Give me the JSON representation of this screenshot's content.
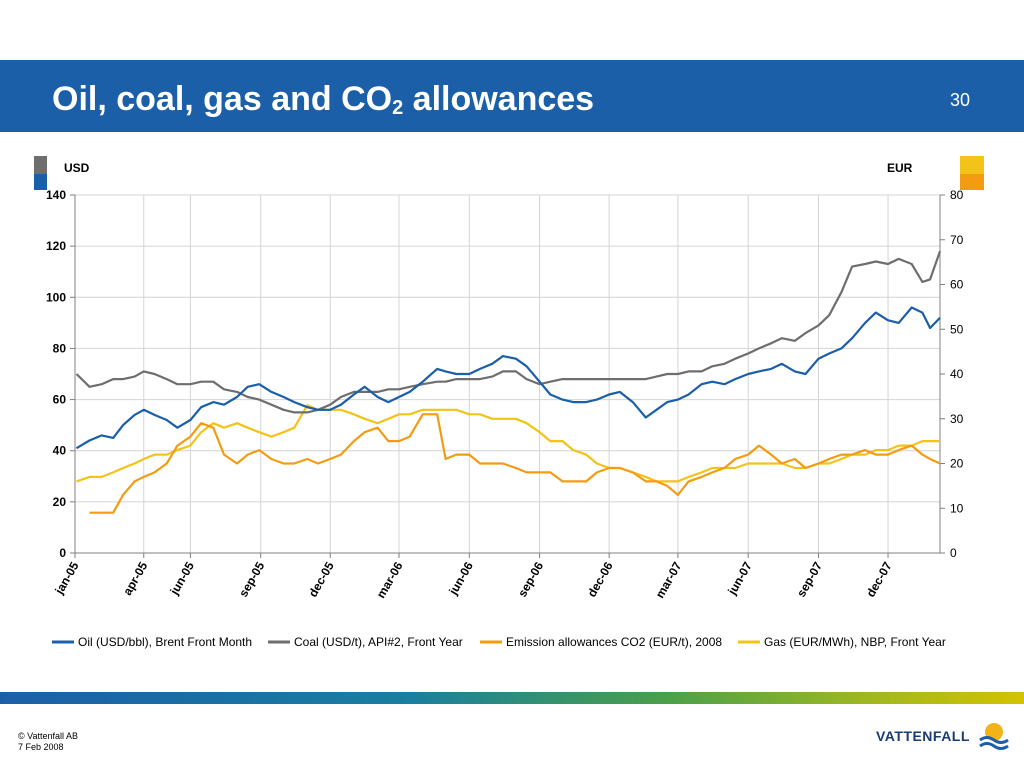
{
  "slide": {
    "title_main": "Oil, coal, gas and CO",
    "title_sub": "2",
    "title_rest": " allowances",
    "page_number": "30",
    "copyright": "© Vattenfall AB",
    "date": "7 Feb 2008",
    "logo_text": "VATTENFALL",
    "colors": {
      "header": "#1b5fa8",
      "oil": "#1b5fa8",
      "coal": "#6e6e6e",
      "co2": "#f39c12",
      "gas": "#f2c318"
    }
  },
  "chart_data": {
    "type": "line",
    "left_axis_label": "USD",
    "right_axis_label": "EUR",
    "left_ylim": [
      0,
      140
    ],
    "left_ticks": [
      "0",
      "20",
      "40",
      "60",
      "80",
      "100",
      "120",
      "140"
    ],
    "right_ylim": [
      0,
      80
    ],
    "right_ticks": [
      "0",
      "10",
      "20",
      "30",
      "40",
      "50",
      "60",
      "70",
      "80"
    ],
    "x_range": [
      "2005-01-01",
      "2008-02-07"
    ],
    "x_ticks": [
      "jan-05",
      "apr-05",
      "jun-05",
      "sep-05",
      "dec-05",
      "mar-06",
      "jun-06",
      "sep-06",
      "dec-06",
      "mar-07",
      "jun-07",
      "sep-07",
      "dec-07"
    ],
    "grid": true,
    "legend_position": "bottom",
    "series": [
      {
        "name": "Oil (USD/bbl), Brent Front Month",
        "axis": "left",
        "color": "#1b5fa8",
        "x": [
          "2005-01-03",
          "2005-01-20",
          "2005-02-05",
          "2005-02-20",
          "2005-03-05",
          "2005-03-20",
          "2005-04-01",
          "2005-04-15",
          "2005-05-01",
          "2005-05-15",
          "2005-06-01",
          "2005-06-15",
          "2005-07-01",
          "2005-07-15",
          "2005-08-01",
          "2005-08-15",
          "2005-08-30",
          "2005-09-15",
          "2005-10-01",
          "2005-10-15",
          "2005-11-01",
          "2005-11-15",
          "2005-12-01",
          "2005-12-15",
          "2006-01-01",
          "2006-01-15",
          "2006-02-01",
          "2006-02-15",
          "2006-03-01",
          "2006-03-15",
          "2006-04-01",
          "2006-04-20",
          "2006-05-01",
          "2006-05-15",
          "2006-06-01",
          "2006-06-15",
          "2006-07-01",
          "2006-07-15",
          "2006-08-01",
          "2006-08-15",
          "2006-09-01",
          "2006-09-15",
          "2006-10-01",
          "2006-10-15",
          "2006-11-01",
          "2006-11-15",
          "2006-12-01",
          "2006-12-15",
          "2007-01-01",
          "2007-01-18",
          "2007-02-01",
          "2007-02-15",
          "2007-03-01",
          "2007-03-15",
          "2007-04-01",
          "2007-04-15",
          "2007-05-01",
          "2007-05-15",
          "2007-06-01",
          "2007-06-15",
          "2007-07-01",
          "2007-07-15",
          "2007-08-01",
          "2007-08-15",
          "2007-09-01",
          "2007-09-15",
          "2007-10-01",
          "2007-10-15",
          "2007-11-01",
          "2007-11-15",
          "2007-12-01",
          "2007-12-15",
          "2008-01-01",
          "2008-01-15",
          "2008-01-25",
          "2008-02-07"
        ],
        "values": [
          41,
          44,
          46,
          45,
          50,
          54,
          56,
          54,
          52,
          49,
          52,
          57,
          59,
          58,
          61,
          65,
          66,
          63,
          61,
          59,
          57,
          56,
          56,
          58,
          62,
          65,
          61,
          59,
          61,
          63,
          67,
          72,
          71,
          70,
          70,
          72,
          74,
          77,
          76,
          73,
          67,
          62,
          60,
          59,
          59,
          60,
          62,
          63,
          59,
          53,
          56,
          59,
          60,
          62,
          66,
          67,
          66,
          68,
          70,
          71,
          72,
          74,
          71,
          70,
          76,
          78,
          80,
          84,
          90,
          94,
          91,
          90,
          96,
          94,
          88,
          92
        ]
      },
      {
        "name": "Coal (USD/t), API#2, Front Year",
        "axis": "left",
        "color": "#6e6e6e",
        "x": [
          "2005-01-03",
          "2005-01-20",
          "2005-02-05",
          "2005-02-20",
          "2005-03-05",
          "2005-03-20",
          "2005-04-01",
          "2005-04-15",
          "2005-05-01",
          "2005-05-15",
          "2005-06-01",
          "2005-06-15",
          "2005-07-01",
          "2005-07-15",
          "2005-08-01",
          "2005-08-15",
          "2005-08-30",
          "2005-09-15",
          "2005-10-01",
          "2005-10-15",
          "2005-11-01",
          "2005-11-15",
          "2005-12-01",
          "2005-12-15",
          "2006-01-01",
          "2006-01-15",
          "2006-02-01",
          "2006-02-15",
          "2006-03-01",
          "2006-03-15",
          "2006-04-01",
          "2006-04-20",
          "2006-05-01",
          "2006-05-15",
          "2006-06-01",
          "2006-06-15",
          "2006-07-01",
          "2006-07-15",
          "2006-08-01",
          "2006-08-15",
          "2006-09-01",
          "2006-09-15",
          "2006-10-01",
          "2006-10-15",
          "2006-11-01",
          "2006-11-15",
          "2006-12-01",
          "2006-12-15",
          "2007-01-01",
          "2007-01-18",
          "2007-02-01",
          "2007-02-15",
          "2007-03-01",
          "2007-03-15",
          "2007-04-01",
          "2007-04-15",
          "2007-05-01",
          "2007-05-15",
          "2007-06-01",
          "2007-06-15",
          "2007-07-01",
          "2007-07-15",
          "2007-08-01",
          "2007-08-15",
          "2007-09-01",
          "2007-09-15",
          "2007-10-01",
          "2007-10-15",
          "2007-11-01",
          "2007-11-15",
          "2007-12-01",
          "2007-12-15",
          "2008-01-01",
          "2008-01-15",
          "2008-01-25",
          "2008-02-07"
        ],
        "values": [
          70,
          65,
          66,
          68,
          68,
          69,
          71,
          70,
          68,
          66,
          66,
          67,
          67,
          64,
          63,
          61,
          60,
          58,
          56,
          55,
          55,
          56,
          58,
          61,
          63,
          63,
          63,
          64,
          64,
          65,
          66,
          67,
          67,
          68,
          68,
          68,
          69,
          71,
          71,
          68,
          66,
          67,
          68,
          68,
          68,
          68,
          68,
          68,
          68,
          68,
          69,
          70,
          70,
          71,
          71,
          73,
          74,
          76,
          78,
          80,
          82,
          84,
          83,
          86,
          89,
          93,
          102,
          112,
          113,
          114,
          113,
          115,
          113,
          106,
          107,
          118
        ]
      },
      {
        "name": "Emission allowances CO2 (EUR/t), 2008",
        "axis": "right",
        "color": "#f39c12",
        "x": [
          "2005-01-03",
          "2005-01-20",
          "2005-02-05",
          "2005-02-20",
          "2005-03-05",
          "2005-03-20",
          "2005-04-01",
          "2005-04-15",
          "2005-05-01",
          "2005-05-15",
          "2005-06-01",
          "2005-06-15",
          "2005-07-01",
          "2005-07-15",
          "2005-08-01",
          "2005-08-15",
          "2005-08-30",
          "2005-09-15",
          "2005-10-01",
          "2005-10-15",
          "2005-11-01",
          "2005-11-15",
          "2005-12-01",
          "2005-12-15",
          "2006-01-01",
          "2006-01-15",
          "2006-02-01",
          "2006-02-15",
          "2006-03-01",
          "2006-03-15",
          "2006-04-01",
          "2006-04-20",
          "2006-05-01",
          "2006-05-15",
          "2006-06-01",
          "2006-06-15",
          "2006-07-01",
          "2006-07-15",
          "2006-08-01",
          "2006-08-15",
          "2006-09-01",
          "2006-09-15",
          "2006-10-01",
          "2006-10-15",
          "2006-11-01",
          "2006-11-15",
          "2006-12-01",
          "2006-12-15",
          "2007-01-01",
          "2007-01-18",
          "2007-02-01",
          "2007-02-15",
          "2007-03-01",
          "2007-03-15",
          "2007-04-01",
          "2007-04-15",
          "2007-05-01",
          "2007-05-15",
          "2007-06-01",
          "2007-06-15",
          "2007-07-01",
          "2007-07-15",
          "2007-08-01",
          "2007-08-15",
          "2007-09-01",
          "2007-09-15",
          "2007-10-01",
          "2007-10-15",
          "2007-11-01",
          "2007-11-15",
          "2007-12-01",
          "2007-12-15",
          "2008-01-01",
          "2008-01-15",
          "2008-01-25",
          "2008-02-07"
        ],
        "values": [
          null,
          9,
          9,
          9,
          13,
          16,
          17,
          18,
          20,
          24,
          26,
          29,
          28,
          22,
          20,
          22,
          23,
          21,
          20,
          20,
          21,
          20,
          21,
          22,
          25,
          27,
          28,
          25,
          25,
          26,
          31,
          31,
          21,
          22,
          22,
          20,
          20,
          20,
          19,
          18,
          18,
          18,
          16,
          16,
          16,
          18,
          19,
          19,
          18,
          16,
          16,
          15,
          13,
          16,
          17,
          18,
          19,
          21,
          22,
          24,
          22,
          20,
          21,
          19,
          20,
          21,
          22,
          22,
          23,
          22,
          22,
          23,
          24,
          22,
          21,
          20
        ]
      },
      {
        "name": "Gas (EUR/MWh), NBP, Front Year",
        "axis": "right",
        "color": "#f2c318",
        "x": [
          "2005-01-03",
          "2005-01-20",
          "2005-02-05",
          "2005-02-20",
          "2005-03-05",
          "2005-03-20",
          "2005-04-01",
          "2005-04-15",
          "2005-05-01",
          "2005-05-15",
          "2005-06-01",
          "2005-06-15",
          "2005-07-01",
          "2005-07-15",
          "2005-08-01",
          "2005-08-15",
          "2005-08-30",
          "2005-09-15",
          "2005-10-01",
          "2005-10-15",
          "2005-11-01",
          "2005-11-15",
          "2005-12-01",
          "2005-12-15",
          "2006-01-01",
          "2006-01-15",
          "2006-02-01",
          "2006-02-15",
          "2006-03-01",
          "2006-03-15",
          "2006-04-01",
          "2006-04-20",
          "2006-05-01",
          "2006-05-15",
          "2006-06-01",
          "2006-06-15",
          "2006-07-01",
          "2006-07-15",
          "2006-08-01",
          "2006-08-15",
          "2006-09-01",
          "2006-09-15",
          "2006-10-01",
          "2006-10-15",
          "2006-11-01",
          "2006-11-15",
          "2006-12-01",
          "2006-12-15",
          "2007-01-01",
          "2007-01-18",
          "2007-02-01",
          "2007-02-15",
          "2007-03-01",
          "2007-03-15",
          "2007-04-01",
          "2007-04-15",
          "2007-05-01",
          "2007-05-15",
          "2007-06-01",
          "2007-06-15",
          "2007-07-01",
          "2007-07-15",
          "2007-08-01",
          "2007-08-15",
          "2007-09-01",
          "2007-09-15",
          "2007-10-01",
          "2007-10-15",
          "2007-11-01",
          "2007-11-15",
          "2007-12-01",
          "2007-12-15",
          "2008-01-01",
          "2008-01-15",
          "2008-01-25",
          "2008-02-07"
        ],
        "values": [
          16,
          17,
          17,
          18,
          19,
          20,
          21,
          22,
          22,
          23,
          24,
          27,
          29,
          28,
          29,
          28,
          27,
          26,
          27,
          28,
          33,
          32,
          32,
          32,
          31,
          30,
          29,
          30,
          31,
          31,
          32,
          32,
          32,
          32,
          31,
          31,
          30,
          30,
          30,
          29,
          27,
          25,
          25,
          23,
          22,
          20,
          19,
          19,
          18,
          17,
          16,
          16,
          16,
          17,
          18,
          19,
          19,
          19,
          20,
          20,
          20,
          20,
          19,
          19,
          20,
          20,
          21,
          22,
          22,
          23,
          23,
          24,
          24,
          25,
          25,
          25
        ]
      }
    ]
  }
}
